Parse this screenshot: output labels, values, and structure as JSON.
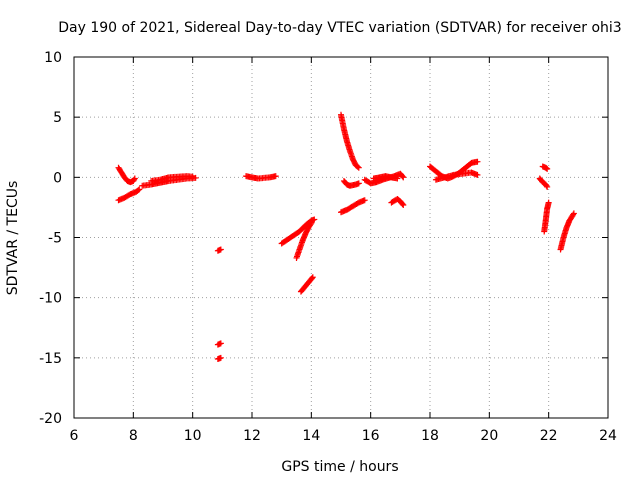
{
  "chart_data": {
    "type": "scatter",
    "title": "Day 190 of 2021, Sidereal Day-to-day VTEC variation (SDTVAR) for receiver ohi3",
    "xlabel": "GPS time / hours",
    "ylabel": "SDTVAR / TECUs",
    "xlim": [
      6,
      24
    ],
    "ylim": [
      -20,
      10
    ],
    "xticks": [
      "6",
      "8",
      "10",
      "12",
      "14",
      "16",
      "18",
      "20",
      "22",
      "24"
    ],
    "yticks": [
      "10",
      "5",
      "0",
      "-5",
      "-10",
      "-15",
      "-20"
    ],
    "grid": true,
    "marker": "+",
    "series_color": "#ff0000",
    "series": [
      {
        "name": "SDTVAR",
        "segments": [
          [
            [
              7.5,
              0.8
            ],
            [
              7.6,
              0.4
            ],
            [
              7.7,
              0.0
            ],
            [
              7.8,
              -0.3
            ],
            [
              7.9,
              -0.4
            ],
            [
              8.0,
              -0.3
            ],
            [
              8.05,
              -0.1
            ]
          ],
          [
            [
              7.5,
              -1.9
            ],
            [
              7.7,
              -1.7
            ],
            [
              7.9,
              -1.4
            ],
            [
              8.1,
              -1.2
            ],
            [
              8.2,
              -1.0
            ]
          ],
          [
            [
              8.3,
              -0.7
            ],
            [
              8.6,
              -0.6
            ],
            [
              8.9,
              -0.45
            ],
            [
              9.2,
              -0.3
            ],
            [
              9.5,
              -0.2
            ],
            [
              9.8,
              -0.1
            ],
            [
              10.1,
              -0.05
            ]
          ],
          [
            [
              8.6,
              -0.3
            ],
            [
              8.9,
              -0.2
            ],
            [
              9.2,
              0.0
            ],
            [
              9.5,
              0.05
            ],
            [
              9.8,
              0.1
            ],
            [
              10.0,
              0.05
            ]
          ],
          [
            [
              10.85,
              -6.1
            ],
            [
              10.95,
              -6.0
            ]
          ],
          [
            [
              10.85,
              -13.9
            ],
            [
              10.95,
              -13.8
            ]
          ],
          [
            [
              10.85,
              -15.1
            ],
            [
              10.95,
              -15.0
            ]
          ],
          [
            [
              11.8,
              0.1
            ],
            [
              12.0,
              0.0
            ],
            [
              12.2,
              -0.1
            ],
            [
              12.4,
              -0.05
            ],
            [
              12.6,
              0.0
            ],
            [
              12.8,
              0.1
            ]
          ],
          [
            [
              13.0,
              -5.5
            ],
            [
              13.3,
              -5.0
            ],
            [
              13.6,
              -4.5
            ],
            [
              13.8,
              -4.0
            ],
            [
              14.0,
              -3.6
            ],
            [
              14.1,
              -3.5
            ]
          ],
          [
            [
              13.5,
              -6.7
            ],
            [
              13.6,
              -6.0
            ],
            [
              13.7,
              -5.3
            ],
            [
              13.8,
              -4.7
            ],
            [
              13.9,
              -4.2
            ],
            [
              14.0,
              -3.8
            ]
          ],
          [
            [
              13.65,
              -9.5
            ],
            [
              13.75,
              -9.2
            ],
            [
              13.85,
              -8.9
            ],
            [
              13.95,
              -8.6
            ],
            [
              14.05,
              -8.3
            ]
          ],
          [
            [
              15.0,
              5.2
            ],
            [
              15.1,
              4.0
            ],
            [
              15.2,
              3.0
            ],
            [
              15.3,
              2.2
            ],
            [
              15.4,
              1.5
            ],
            [
              15.5,
              1.0
            ],
            [
              15.6,
              0.8
            ]
          ],
          [
            [
              15.0,
              -2.9
            ],
            [
              15.2,
              -2.7
            ],
            [
              15.4,
              -2.4
            ],
            [
              15.6,
              -2.1
            ],
            [
              15.8,
              -1.9
            ]
          ],
          [
            [
              15.1,
              -0.3
            ],
            [
              15.2,
              -0.6
            ],
            [
              15.3,
              -0.7
            ],
            [
              15.5,
              -0.6
            ],
            [
              15.6,
              -0.5
            ]
          ],
          [
            [
              15.8,
              -0.2
            ],
            [
              16.0,
              -0.5
            ],
            [
              16.2,
              -0.4
            ],
            [
              16.4,
              -0.2
            ],
            [
              16.6,
              -0.05
            ],
            [
              16.8,
              0.1
            ],
            [
              17.0,
              0.3
            ],
            [
              17.1,
              0.0
            ]
          ],
          [
            [
              16.1,
              -0.1
            ],
            [
              16.3,
              0.0
            ],
            [
              16.5,
              0.1
            ],
            [
              16.7,
              0.0
            ],
            [
              16.9,
              -0.1
            ]
          ],
          [
            [
              16.7,
              -2.1
            ],
            [
              16.9,
              -1.8
            ],
            [
              17.0,
              -2.0
            ],
            [
              17.1,
              -2.3
            ]
          ],
          [
            [
              18.0,
              0.9
            ],
            [
              18.2,
              0.5
            ],
            [
              18.4,
              0.1
            ],
            [
              18.6,
              -0.1
            ],
            [
              18.8,
              0.1
            ],
            [
              19.0,
              0.4
            ],
            [
              19.2,
              0.8
            ],
            [
              19.4,
              1.2
            ],
            [
              19.6,
              1.3
            ]
          ],
          [
            [
              18.2,
              -0.2
            ],
            [
              18.5,
              0.0
            ],
            [
              18.8,
              0.2
            ],
            [
              19.1,
              0.3
            ],
            [
              19.4,
              0.4
            ],
            [
              19.6,
              0.2
            ]
          ],
          [
            [
              21.8,
              0.9
            ],
            [
              21.9,
              0.8
            ],
            [
              21.95,
              0.7
            ]
          ],
          [
            [
              21.7,
              -0.1
            ],
            [
              21.8,
              -0.4
            ],
            [
              21.9,
              -0.6
            ],
            [
              21.95,
              -0.8
            ]
          ],
          [
            [
              21.85,
              -4.5
            ],
            [
              21.9,
              -3.6
            ],
            [
              21.95,
              -2.6
            ],
            [
              22.0,
              -2.1
            ]
          ],
          [
            [
              22.4,
              -6.0
            ],
            [
              22.5,
              -5.0
            ],
            [
              22.6,
              -4.2
            ],
            [
              22.7,
              -3.6
            ],
            [
              22.85,
              -3.0
            ]
          ]
        ]
      }
    ]
  }
}
